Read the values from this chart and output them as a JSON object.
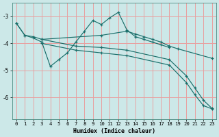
{
  "xlabel": "Humidex (Indice chaleur)",
  "bg_color": "#cce8e8",
  "grid_color": "#e8a0a0",
  "line_color": "#1a6e6a",
  "xlim": [
    -0.5,
    23.5
  ],
  "ylim": [
    -6.8,
    -2.5
  ],
  "xticks": [
    0,
    1,
    2,
    3,
    4,
    5,
    6,
    7,
    8,
    9,
    10,
    11,
    12,
    13,
    14,
    15,
    16,
    17,
    18,
    19,
    20,
    21,
    22,
    23
  ],
  "yticks": [
    -6,
    -5,
    -4,
    -3
  ],
  "series": [
    {
      "x": [
        0,
        1,
        2,
        3,
        10,
        13,
        14,
        15,
        16,
        17,
        18,
        19,
        23
      ],
      "y": [
        -3.25,
        -3.7,
        -3.75,
        -3.85,
        -3.7,
        -3.55,
        -3.65,
        -3.75,
        -3.85,
        -3.95,
        -4.1,
        -4.2,
        -4.55
      ]
    },
    {
      "x": [
        0,
        1,
        2,
        3,
        4,
        5,
        6,
        7,
        8,
        9,
        10,
        11,
        12,
        13,
        14,
        15,
        16,
        17,
        18
      ],
      "y": [
        -3.25,
        -3.7,
        -3.8,
        -3.95,
        -4.85,
        -4.6,
        -4.35,
        -3.95,
        -3.55,
        -3.15,
        -3.3,
        -3.05,
        -2.85,
        -3.5,
        -3.75,
        -3.85,
        -3.95,
        -4.05,
        -4.15
      ]
    },
    {
      "x": [
        3,
        7,
        10,
        13,
        18,
        20,
        21,
        22,
        23
      ],
      "y": [
        -3.85,
        -4.1,
        -4.15,
        -4.25,
        -4.6,
        -5.2,
        -5.65,
        -6.1,
        -6.4
      ]
    },
    {
      "x": [
        3,
        7,
        10,
        13,
        18,
        20,
        21,
        22,
        23
      ],
      "y": [
        -4.0,
        -4.25,
        -4.35,
        -4.45,
        -4.8,
        -5.45,
        -5.9,
        -6.3,
        -6.42
      ]
    }
  ]
}
